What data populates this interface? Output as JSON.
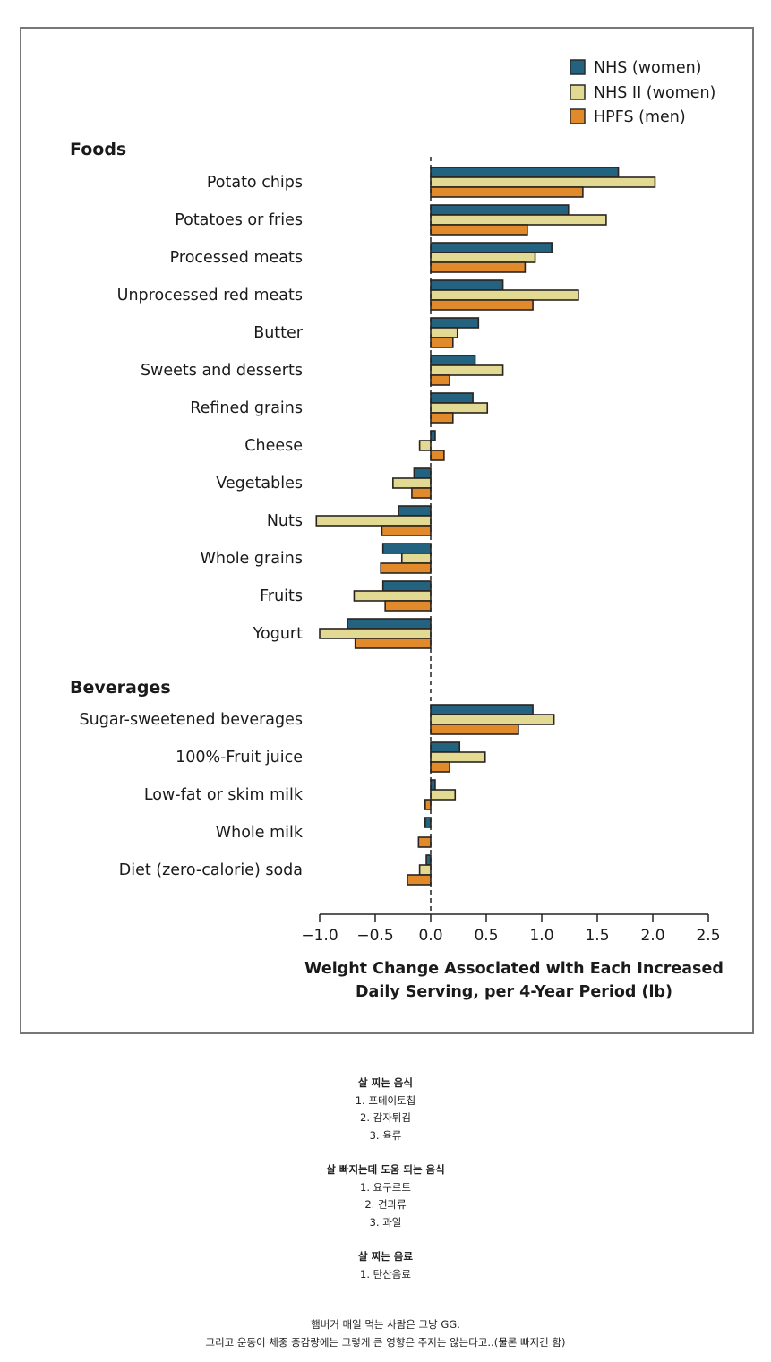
{
  "chart_data": {
    "type": "bar",
    "orientation": "horizontal",
    "title": "",
    "xlabel": "Weight Change Associated with Each Increased Daily Serving, per 4-Year Period (lb)",
    "xlabel_lines": [
      "Weight Change Associated with Each Increased",
      "Daily Serving, per 4-Year Period (lb)"
    ],
    "ylabel": "",
    "xlim": [
      -1.0,
      2.5
    ],
    "xticks": [
      -1.0,
      -0.5,
      0.0,
      0.5,
      1.0,
      1.5,
      2.0,
      2.5
    ],
    "xtick_labels": [
      "−1.0",
      "−0.5",
      "0.0",
      "0.5",
      "1.0",
      "1.5",
      "2.0",
      "2.5"
    ],
    "grid": false,
    "legend_position": "top-right",
    "series": [
      {
        "name": "NHS (women)",
        "color": "#23637f"
      },
      {
        "name": "NHS II (women)",
        "color": "#e2d992"
      },
      {
        "name": "HPFS (men)",
        "color": "#e08a2c"
      }
    ],
    "sections": [
      {
        "name": "Foods",
        "categories": [
          {
            "label": "Potato chips",
            "values": [
              1.69,
              2.02,
              1.37
            ]
          },
          {
            "label": "Potatoes or fries",
            "values": [
              1.24,
              1.58,
              0.87
            ]
          },
          {
            "label": "Processed meats",
            "values": [
              1.09,
              0.94,
              0.85
            ]
          },
          {
            "label": "Unprocessed red meats",
            "values": [
              0.65,
              1.33,
              0.92
            ]
          },
          {
            "label": "Butter",
            "values": [
              0.43,
              0.24,
              0.2
            ]
          },
          {
            "label": "Sweets and desserts",
            "values": [
              0.4,
              0.65,
              0.17
            ]
          },
          {
            "label": "Refined grains",
            "values": [
              0.38,
              0.51,
              0.2
            ]
          },
          {
            "label": "Cheese",
            "values": [
              0.04,
              -0.1,
              0.12
            ]
          },
          {
            "label": "Vegetables",
            "values": [
              -0.15,
              -0.34,
              -0.17
            ]
          },
          {
            "label": "Nuts",
            "values": [
              -0.29,
              -1.03,
              -0.44
            ]
          },
          {
            "label": "Whole grains",
            "values": [
              -0.43,
              -0.26,
              -0.45
            ]
          },
          {
            "label": "Fruits",
            "values": [
              -0.43,
              -0.69,
              -0.41
            ]
          },
          {
            "label": "Yogurt",
            "values": [
              -0.75,
              -1.0,
              -0.68
            ]
          }
        ]
      },
      {
        "name": "Beverages",
        "categories": [
          {
            "label": "Sugar-sweetened beverages",
            "values": [
              0.92,
              1.11,
              0.79
            ]
          },
          {
            "label": "100%-Fruit juice",
            "values": [
              0.26,
              0.49,
              0.17
            ]
          },
          {
            "label": "Low-fat or skim milk",
            "values": [
              0.04,
              0.22,
              -0.05
            ]
          },
          {
            "label": "Whole milk",
            "values": [
              -0.05,
              0.0,
              -0.11
            ]
          },
          {
            "label": "Diet (zero-calorie) soda",
            "values": [
              -0.04,
              -0.1,
              -0.21
            ]
          }
        ]
      }
    ]
  },
  "notes": {
    "blocks": [
      {
        "heading": "살 찌는 음식",
        "items": [
          "1. 포테이토칩",
          "2. 감자튀김",
          "3. 육류"
        ]
      },
      {
        "heading": "살 빠지는데 도움 되는 음식",
        "items": [
          "1. 요구르트",
          "2. 견과류",
          "3. 과일"
        ]
      },
      {
        "heading": "살 찌는 음료",
        "items": [
          "1. 탄산음료"
        ]
      }
    ],
    "footer": [
      "햄버거 매일 먹는 사람은 그냥 GG.",
      "그리고 운동이 체중 증감량에는 그렇게 큰 영향은 주지는 않는다고..(물론 빠지긴 함)"
    ]
  }
}
